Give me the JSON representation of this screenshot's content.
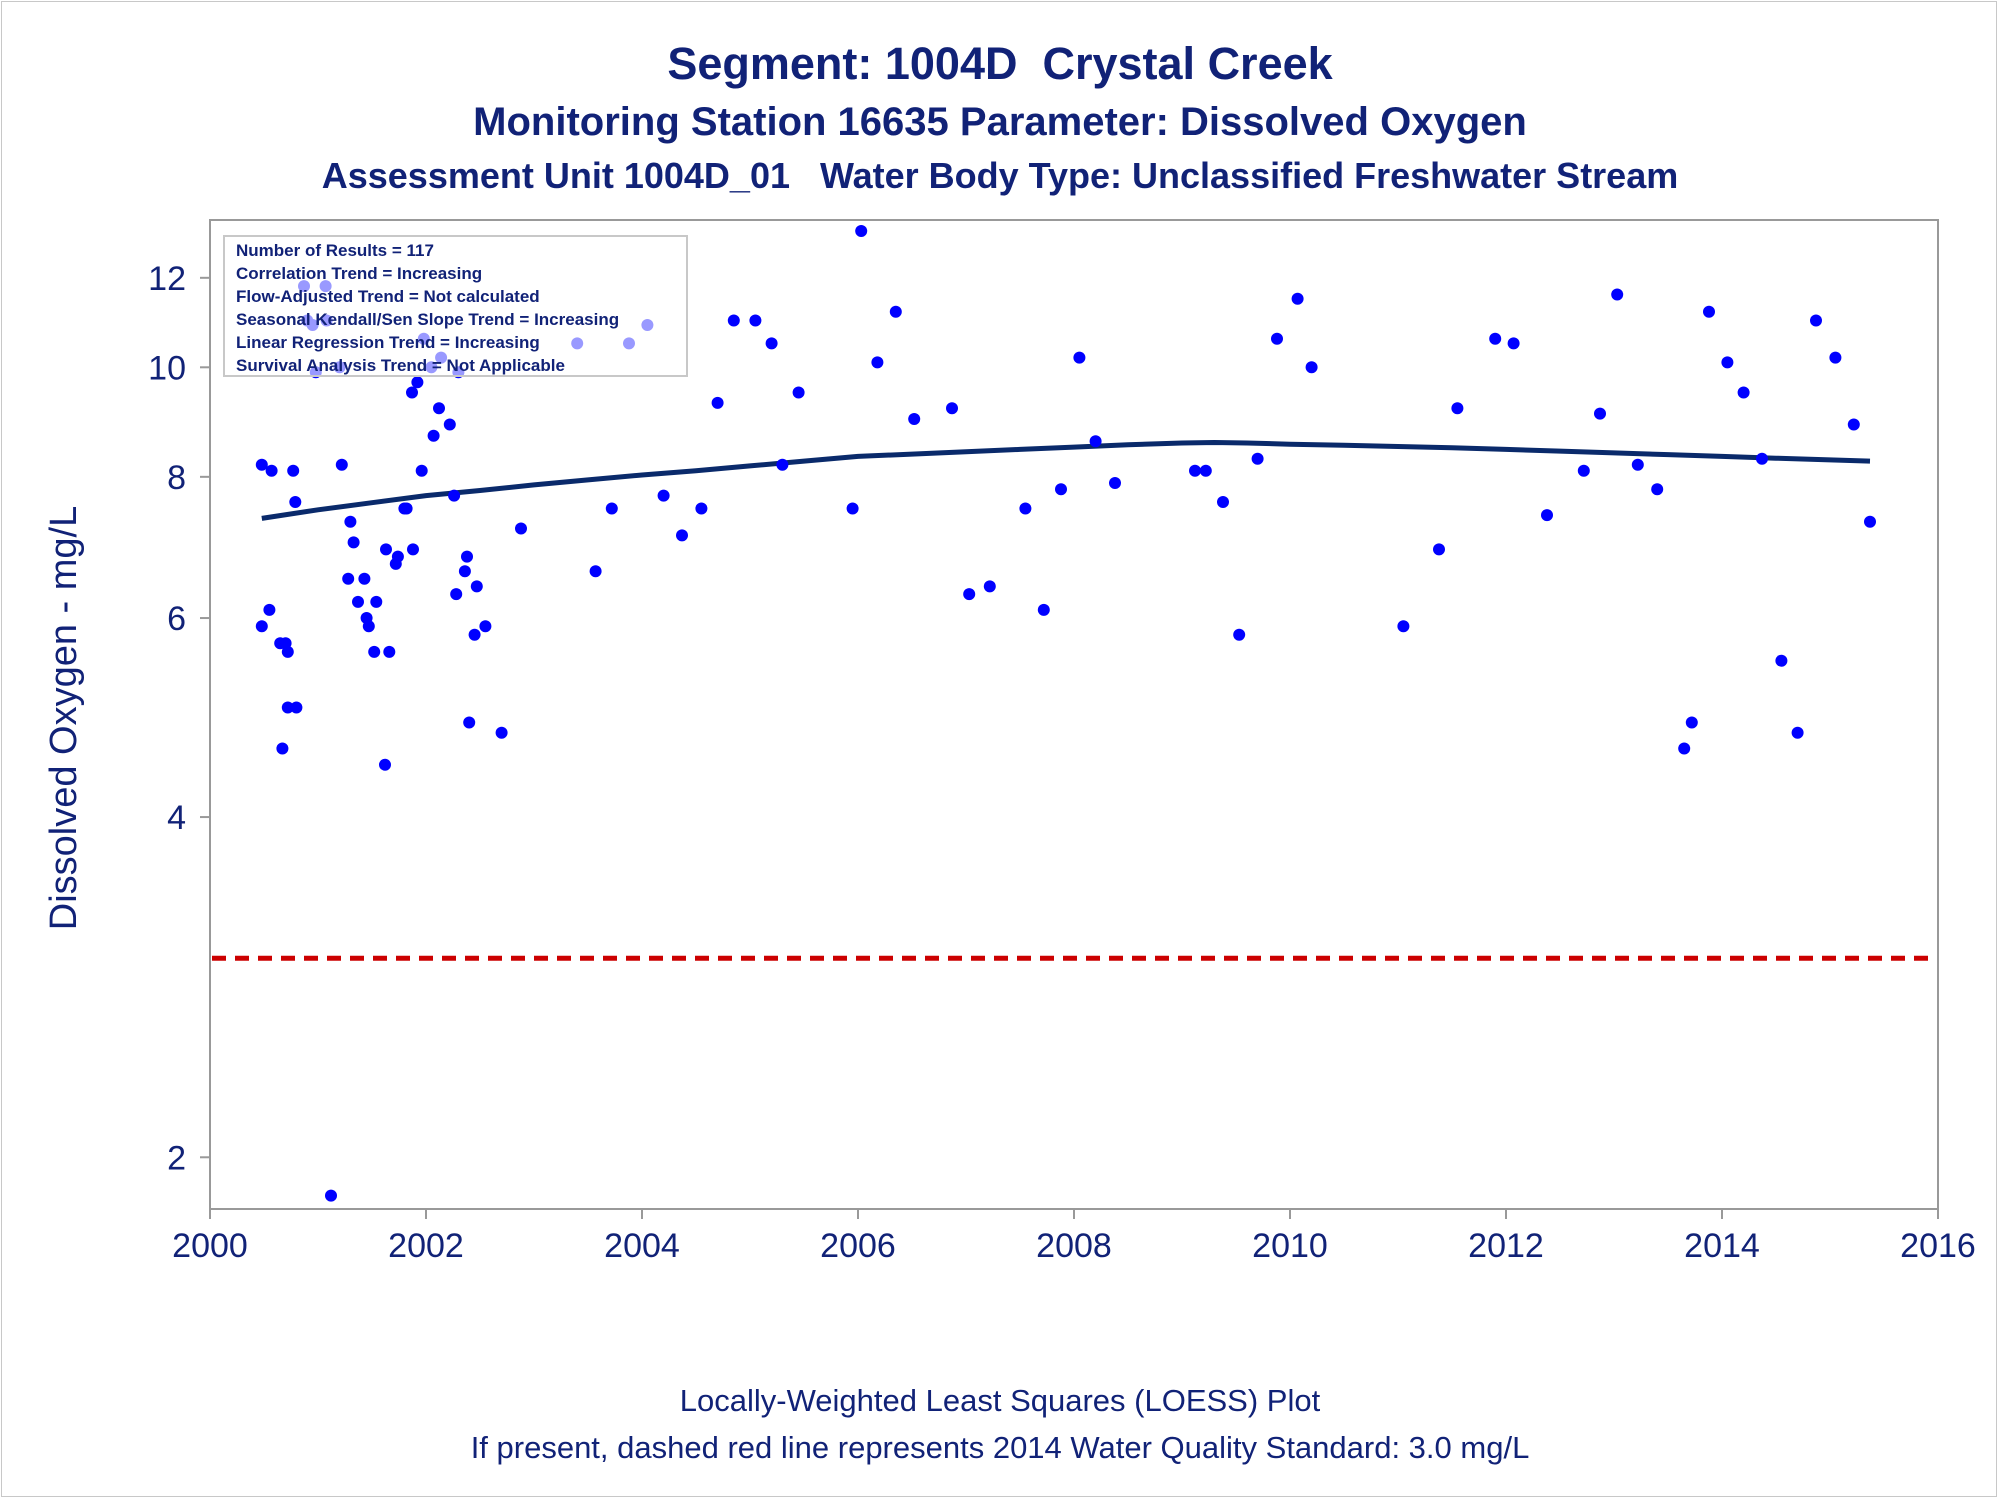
{
  "colors": {
    "text": "#112277",
    "points": "#0000ff",
    "loess": "#0a2a6b",
    "standard": "#cc0000",
    "frame": "#999999"
  },
  "header": {
    "title": "Segment: 1004D  Crystal Creek",
    "subtitle": "Monitoring Station 16635 Parameter: Dissolved Oxygen",
    "subtitle2": "Assessment Unit 1004D_01   Water Body Type: Unclassified Freshwater Stream"
  },
  "footer": {
    "line1": "Locally-Weighted Least Squares (LOESS) Plot",
    "line2": "If present, dashed red line represents 2014 Water Quality Standard: 3.0 mg/L"
  },
  "info_box": [
    "Number of Results = 117",
    "Correlation Trend = Increasing",
    "Flow-Adjusted Trend = Not calculated",
    "Seasonal Kendall/Sen Slope Trend = Increasing",
    "Linear Regression Trend = Increasing",
    "Survival Analysis Trend = Not Applicable"
  ],
  "chart_data": {
    "type": "scatter",
    "ylabel": "Dissolved Oxygen - mg/L",
    "xlabel": "",
    "y_scale": "log",
    "xlim": [
      2000,
      2016
    ],
    "ylim": [
      1.8,
      13.5
    ],
    "x_ticks": [
      "2000",
      "2002",
      "2004",
      "2006",
      "2008",
      "2010",
      "2012",
      "2014",
      "2016"
    ],
    "y_ticks": [
      "2",
      "4",
      "6",
      "8",
      "10",
      "12"
    ],
    "grid": false,
    "standard_line": {
      "value": 3.0,
      "style": "dashed"
    },
    "points": [
      [
        2000.48,
        8.2
      ],
      [
        2000.48,
        5.9
      ],
      [
        2000.55,
        6.1
      ],
      [
        2000.57,
        8.1
      ],
      [
        2000.65,
        5.7
      ],
      [
        2000.67,
        4.6
      ],
      [
        2000.7,
        5.7
      ],
      [
        2000.72,
        5.6
      ],
      [
        2000.72,
        5.0
      ],
      [
        2000.77,
        8.1
      ],
      [
        2000.79,
        7.6
      ],
      [
        2000.8,
        5.0
      ],
      [
        2000.87,
        11.8
      ],
      [
        2000.9,
        11.0
      ],
      [
        2000.95,
        10.9
      ],
      [
        2000.98,
        9.9
      ],
      [
        2001.07,
        11.8
      ],
      [
        2001.08,
        11.0
      ],
      [
        2001.12,
        1.85
      ],
      [
        2001.2,
        10.0
      ],
      [
        2001.22,
        8.2
      ],
      [
        2001.28,
        6.5
      ],
      [
        2001.3,
        7.3
      ],
      [
        2001.33,
        7.0
      ],
      [
        2001.37,
        6.2
      ],
      [
        2001.43,
        6.5
      ],
      [
        2001.45,
        6.0
      ],
      [
        2001.47,
        5.9
      ],
      [
        2001.52,
        5.6
      ],
      [
        2001.54,
        6.2
      ],
      [
        2001.62,
        4.45
      ],
      [
        2001.63,
        6.9
      ],
      [
        2001.66,
        5.6
      ],
      [
        2001.72,
        6.7
      ],
      [
        2001.74,
        6.8
      ],
      [
        2001.8,
        7.5
      ],
      [
        2001.82,
        7.5
      ],
      [
        2001.87,
        9.5
      ],
      [
        2001.88,
        6.9
      ],
      [
        2001.92,
        9.7
      ],
      [
        2001.96,
        8.1
      ],
      [
        2001.98,
        10.6
      ],
      [
        2002.05,
        10.0
      ],
      [
        2002.07,
        8.7
      ],
      [
        2002.12,
        9.2
      ],
      [
        2002.14,
        10.2
      ],
      [
        2002.22,
        8.9
      ],
      [
        2002.26,
        7.7
      ],
      [
        2002.28,
        6.3
      ],
      [
        2002.3,
        9.9
      ],
      [
        2002.36,
        6.6
      ],
      [
        2002.38,
        6.8
      ],
      [
        2002.4,
        4.85
      ],
      [
        2002.45,
        5.8
      ],
      [
        2002.47,
        6.4
      ],
      [
        2002.55,
        5.9
      ],
      [
        2002.7,
        4.75
      ],
      [
        2002.88,
        7.2
      ],
      [
        2003.4,
        10.5
      ],
      [
        2003.57,
        6.6
      ],
      [
        2003.72,
        7.5
      ],
      [
        2003.88,
        10.5
      ],
      [
        2004.05,
        10.9
      ],
      [
        2004.2,
        7.7
      ],
      [
        2004.37,
        7.1
      ],
      [
        2004.55,
        7.5
      ],
      [
        2004.7,
        9.3
      ],
      [
        2004.85,
        11.0
      ],
      [
        2005.05,
        11.0
      ],
      [
        2005.2,
        10.5
      ],
      [
        2005.3,
        8.2
      ],
      [
        2005.45,
        9.5
      ],
      [
        2005.95,
        7.5
      ],
      [
        2006.03,
        13.2
      ],
      [
        2006.18,
        10.1
      ],
      [
        2006.35,
        11.2
      ],
      [
        2006.52,
        9.0
      ],
      [
        2006.87,
        9.2
      ],
      [
        2007.03,
        6.3
      ],
      [
        2007.22,
        6.4
      ],
      [
        2007.55,
        7.5
      ],
      [
        2007.72,
        6.1
      ],
      [
        2007.88,
        7.8
      ],
      [
        2008.05,
        10.2
      ],
      [
        2008.2,
        8.6
      ],
      [
        2008.38,
        7.9
      ],
      [
        2009.12,
        8.1
      ],
      [
        2009.22,
        8.1
      ],
      [
        2009.38,
        7.6
      ],
      [
        2009.53,
        5.8
      ],
      [
        2009.7,
        8.3
      ],
      [
        2009.88,
        10.6
      ],
      [
        2010.07,
        11.5
      ],
      [
        2010.2,
        10.0
      ],
      [
        2011.05,
        5.9
      ],
      [
        2011.38,
        6.9
      ],
      [
        2011.55,
        9.2
      ],
      [
        2011.9,
        10.6
      ],
      [
        2012.07,
        10.5
      ],
      [
        2012.38,
        7.4
      ],
      [
        2012.72,
        8.1
      ],
      [
        2012.87,
        9.1
      ],
      [
        2013.03,
        11.6
      ],
      [
        2013.22,
        8.2
      ],
      [
        2013.4,
        7.8
      ],
      [
        2013.65,
        4.6
      ],
      [
        2013.72,
        4.85
      ],
      [
        2013.88,
        11.2
      ],
      [
        2014.05,
        10.1
      ],
      [
        2014.2,
        9.5
      ],
      [
        2014.37,
        8.3
      ],
      [
        2014.55,
        5.5
      ],
      [
        2014.7,
        4.75
      ],
      [
        2014.87,
        11.0
      ],
      [
        2015.05,
        10.2
      ],
      [
        2015.22,
        8.9
      ],
      [
        2015.37,
        7.3
      ]
    ],
    "loess": [
      [
        2000.48,
        7.35
      ],
      [
        2001.0,
        7.48
      ],
      [
        2001.5,
        7.59
      ],
      [
        2002.0,
        7.7
      ],
      [
        2002.5,
        7.78
      ],
      [
        2003.0,
        7.87
      ],
      [
        2003.5,
        7.95
      ],
      [
        2004.0,
        8.03
      ],
      [
        2004.5,
        8.1
      ],
      [
        2005.0,
        8.18
      ],
      [
        2005.5,
        8.26
      ],
      [
        2006.0,
        8.34
      ],
      [
        2006.5,
        8.38
      ],
      [
        2007.0,
        8.42
      ],
      [
        2007.5,
        8.46
      ],
      [
        2008.0,
        8.5
      ],
      [
        2008.5,
        8.54
      ],
      [
        2009.0,
        8.57
      ],
      [
        2009.3,
        8.58
      ],
      [
        2009.6,
        8.57
      ],
      [
        2010.0,
        8.55
      ],
      [
        2010.5,
        8.53
      ],
      [
        2011.0,
        8.51
      ],
      [
        2011.5,
        8.49
      ],
      [
        2012.0,
        8.46
      ],
      [
        2012.5,
        8.43
      ],
      [
        2013.0,
        8.4
      ],
      [
        2013.5,
        8.37
      ],
      [
        2014.0,
        8.34
      ],
      [
        2014.5,
        8.31
      ],
      [
        2015.0,
        8.28
      ],
      [
        2015.37,
        8.26
      ]
    ]
  }
}
